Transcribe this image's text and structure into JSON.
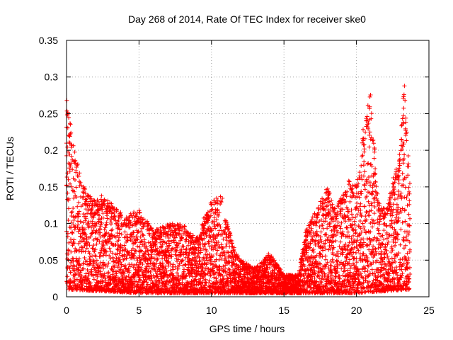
{
  "chart_data": {
    "type": "scatter",
    "title": "Day 268 of 2014, Rate Of TEC Index for receiver ske0",
    "xlabel": "GPS time / hours",
    "ylabel": "ROTI / TECUs",
    "xlim": [
      0,
      25
    ],
    "ylim": [
      0,
      0.35
    ],
    "xticks": [
      0,
      5,
      10,
      15,
      20,
      25
    ],
    "xtick_labels": [
      "0",
      "5",
      "10",
      "15",
      "20",
      "25"
    ],
    "yticks": [
      0,
      0.05,
      0.1,
      0.15,
      0.2,
      0.25,
      0.3,
      0.35
    ],
    "ytick_labels": [
      "0",
      "0.05",
      "0.1",
      "0.15",
      "0.2",
      "0.25",
      "0.3",
      "0.35"
    ],
    "grid": true,
    "marker": "+",
    "color": "#ff0000",
    "envelope_note": "approximate upper envelope of the dense point cloud (hour, ROTI)",
    "envelope": [
      [
        0.0,
        0.27
      ],
      [
        0.2,
        0.25
      ],
      [
        0.5,
        0.21
      ],
      [
        1.0,
        0.16
      ],
      [
        1.5,
        0.14
      ],
      [
        2.0,
        0.13
      ],
      [
        2.5,
        0.14
      ],
      [
        3.0,
        0.13
      ],
      [
        4.0,
        0.11
      ],
      [
        5.0,
        0.12
      ],
      [
        6.0,
        0.09
      ],
      [
        7.0,
        0.1
      ],
      [
        8.0,
        0.1
      ],
      [
        9.0,
        0.08
      ],
      [
        9.5,
        0.11
      ],
      [
        10.0,
        0.13
      ],
      [
        10.7,
        0.14
      ],
      [
        11.5,
        0.07
      ],
      [
        12.0,
        0.05
      ],
      [
        13.0,
        0.04
      ],
      [
        14.0,
        0.06
      ],
      [
        15.0,
        0.03
      ],
      [
        16.0,
        0.03
      ],
      [
        16.5,
        0.09
      ],
      [
        17.0,
        0.11
      ],
      [
        17.5,
        0.13
      ],
      [
        18.0,
        0.15
      ],
      [
        18.5,
        0.12
      ],
      [
        19.0,
        0.14
      ],
      [
        19.5,
        0.17
      ],
      [
        20.0,
        0.15
      ],
      [
        20.5,
        0.24
      ],
      [
        21.0,
        0.28
      ],
      [
        21.5,
        0.13
      ],
      [
        22.0,
        0.12
      ],
      [
        22.5,
        0.16
      ],
      [
        23.0,
        0.2
      ],
      [
        23.3,
        0.3
      ],
      [
        23.6,
        0.18
      ]
    ],
    "floor": [
      [
        0.0,
        0.01
      ],
      [
        5.0,
        0.005
      ],
      [
        10.0,
        0.005
      ],
      [
        15.0,
        0.005
      ],
      [
        20.0,
        0.005
      ],
      [
        23.7,
        0.01
      ]
    ],
    "data_end_hour": 23.7
  }
}
